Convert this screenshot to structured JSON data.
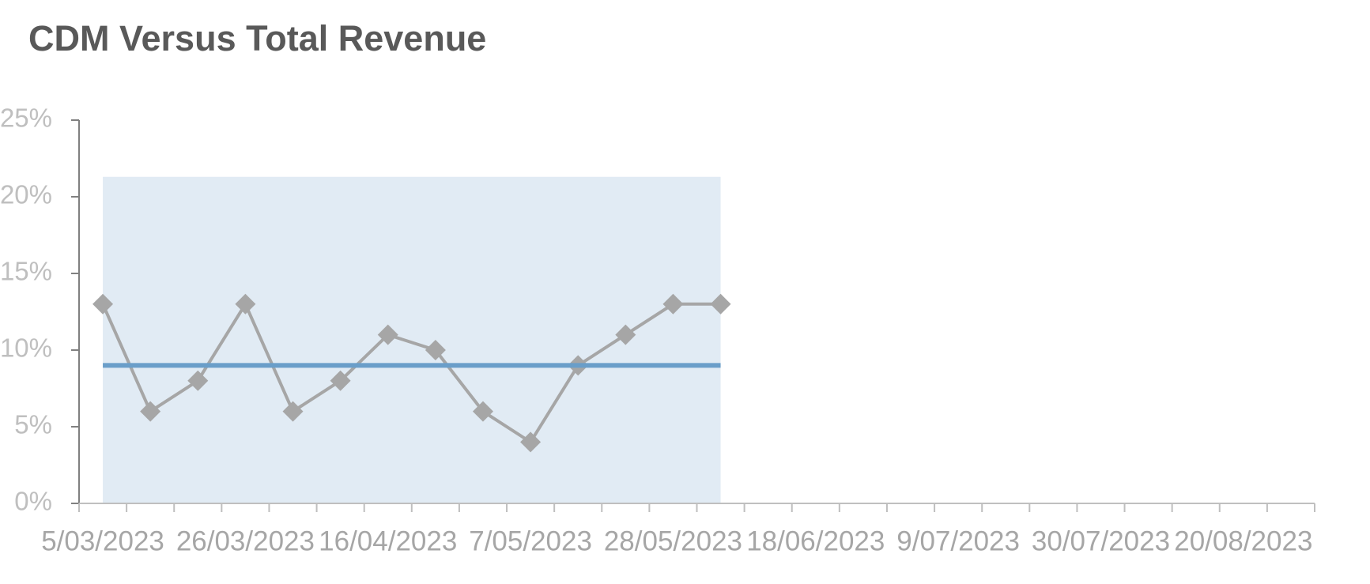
{
  "chart_data": {
    "type": "line",
    "title": "CDM Versus Total Revenue",
    "categories": [
      "5/03/2023",
      null,
      null,
      "26/03/2023",
      null,
      null,
      "16/04/2023",
      null,
      null,
      "7/05/2023",
      null,
      null,
      "28/05/2023",
      null,
      null,
      "18/06/2023",
      null,
      null,
      "9/07/2023",
      null,
      null,
      "30/07/2023",
      null,
      null,
      "20/08/2023",
      null
    ],
    "series": [
      {
        "color": "#a6a6a6",
        "values": [
          13,
          6,
          8,
          13,
          6,
          8,
          11,
          10,
          6,
          4,
          9,
          11,
          13,
          13,
          null,
          null,
          null,
          null,
          null,
          null,
          null,
          null,
          null,
          null,
          null,
          null
        ],
        "markers": true
      },
      {
        "color": "#6a9ec9",
        "values": [
          9,
          9,
          9,
          9,
          9,
          9,
          9,
          9,
          9,
          9,
          9,
          9,
          9,
          9,
          null,
          null,
          null,
          null,
          null,
          null,
          null,
          null,
          null,
          null,
          null,
          null
        ],
        "markers": false
      }
    ],
    "shading": {
      "color": "#e1ebf4",
      "ylim": [
        0,
        21.3
      ]
    },
    "ylim": [
      0,
      25
    ],
    "yticks": [
      {
        "value": 0,
        "label": "0%"
      },
      {
        "value": 5,
        "label": "5%"
      },
      {
        "value": 10,
        "label": "10%"
      },
      {
        "value": 15,
        "label": "15%"
      },
      {
        "value": 20,
        "label": "20%"
      },
      {
        "value": 25,
        "label": "25%"
      }
    ],
    "grid": false
  }
}
